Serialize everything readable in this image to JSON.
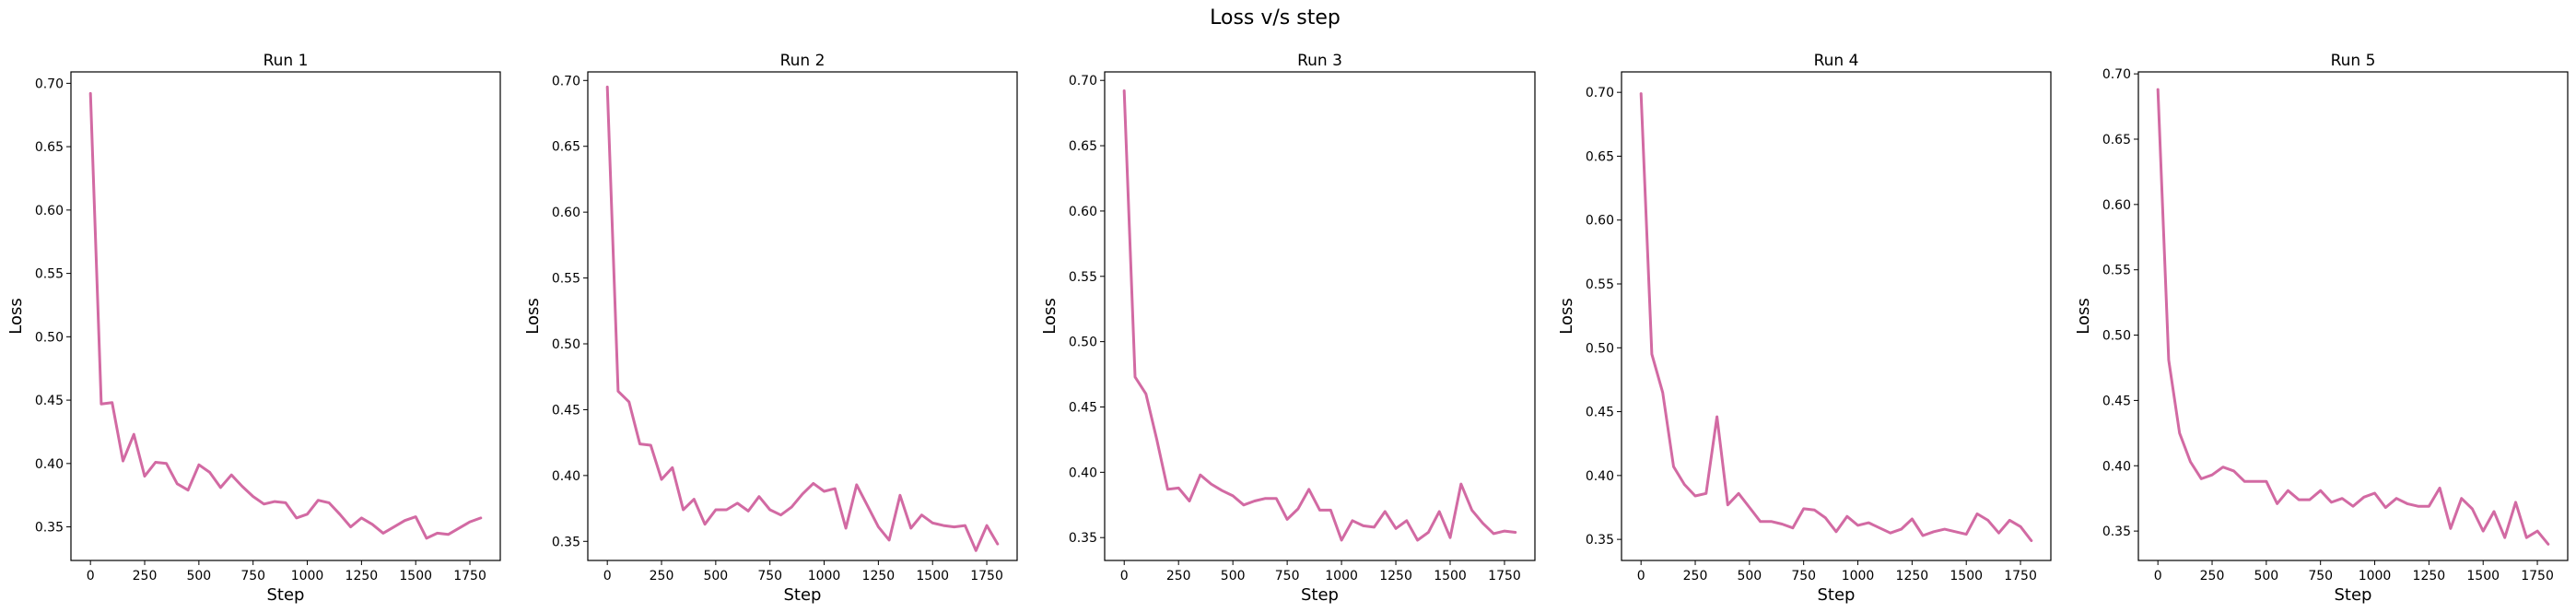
{
  "figure": {
    "title": "Loss v/s step"
  },
  "colors": {
    "line": "#d26aa3",
    "axes": "#000000",
    "background": "#ffffff"
  },
  "chart_data": [
    {
      "type": "line",
      "title": "Run 1",
      "xlabel": "Step",
      "ylabel": "Loss",
      "xlim": [
        -90,
        1890
      ],
      "ylim": [
        0.3235,
        0.709
      ],
      "xticks": [
        0,
        250,
        500,
        750,
        1000,
        1250,
        1500,
        1750
      ],
      "yticks": [
        0.35,
        0.4,
        0.45,
        0.5,
        0.55,
        0.6,
        0.65,
        0.7
      ],
      "grid": false,
      "x": [
        0,
        50,
        100,
        150,
        200,
        250,
        300,
        350,
        400,
        450,
        500,
        550,
        600,
        650,
        700,
        750,
        800,
        850,
        900,
        950,
        1000,
        1050,
        1100,
        1150,
        1200,
        1250,
        1300,
        1350,
        1400,
        1450,
        1500,
        1550,
        1600,
        1650,
        1700,
        1750,
        1800
      ],
      "series": [
        {
          "values": [
            0.692,
            0.447,
            0.448,
            0.402,
            0.423,
            0.39,
            0.401,
            0.4,
            0.384,
            0.379,
            0.399,
            0.393,
            0.381,
            0.391,
            0.382,
            0.374,
            0.368,
            0.37,
            0.369,
            0.357,
            0.36,
            0.371,
            0.369,
            0.36,
            0.35,
            0.357,
            0.352,
            0.345,
            0.35,
            0.355,
            0.358,
            0.341,
            0.345,
            0.344,
            0.349,
            0.354,
            0.357
          ]
        }
      ]
    },
    {
      "type": "line",
      "title": "Run 2",
      "xlabel": "Step",
      "ylabel": "Loss",
      "xlim": [
        -90,
        1890
      ],
      "ylim": [
        0.3355,
        0.7065
      ],
      "xticks": [
        0,
        250,
        500,
        750,
        1000,
        1250,
        1500,
        1750
      ],
      "yticks": [
        0.35,
        0.4,
        0.45,
        0.5,
        0.55,
        0.6,
        0.65,
        0.7
      ],
      "grid": false,
      "x": [
        0,
        50,
        100,
        150,
        200,
        250,
        300,
        350,
        400,
        450,
        500,
        550,
        600,
        650,
        700,
        750,
        800,
        850,
        900,
        950,
        1000,
        1050,
        1100,
        1150,
        1200,
        1250,
        1300,
        1350,
        1400,
        1450,
        1500,
        1550,
        1600,
        1650,
        1700,
        1750,
        1800
      ],
      "series": [
        {
          "values": [
            0.695,
            0.464,
            0.456,
            0.424,
            0.423,
            0.397,
            0.406,
            0.374,
            0.382,
            0.363,
            0.374,
            0.374,
            0.379,
            0.373,
            0.384,
            0.374,
            0.37,
            0.376,
            0.386,
            0.394,
            0.388,
            0.39,
            0.36,
            0.393,
            0.377,
            0.361,
            0.351,
            0.385,
            0.36,
            0.37,
            0.364,
            0.362,
            0.361,
            0.362,
            0.343,
            0.362,
            0.348
          ]
        }
      ]
    },
    {
      "type": "line",
      "title": "Run 3",
      "xlabel": "Step",
      "ylabel": "Loss",
      "xlim": [
        -90,
        1890
      ],
      "ylim": [
        0.3325,
        0.7065
      ],
      "xticks": [
        0,
        250,
        500,
        750,
        1000,
        1250,
        1500,
        1750
      ],
      "yticks": [
        0.35,
        0.4,
        0.45,
        0.5,
        0.55,
        0.6,
        0.65,
        0.7
      ],
      "grid": false,
      "x": [
        0,
        50,
        100,
        150,
        200,
        250,
        300,
        350,
        400,
        450,
        500,
        550,
        600,
        650,
        700,
        750,
        800,
        850,
        900,
        950,
        1000,
        1050,
        1100,
        1150,
        1200,
        1250,
        1300,
        1350,
        1400,
        1450,
        1500,
        1550,
        1600,
        1650,
        1700,
        1750,
        1800
      ],
      "series": [
        {
          "values": [
            0.692,
            0.473,
            0.46,
            0.425,
            0.387,
            0.388,
            0.378,
            0.398,
            0.391,
            0.386,
            0.382,
            0.375,
            0.378,
            0.38,
            0.38,
            0.364,
            0.372,
            0.387,
            0.371,
            0.371,
            0.348,
            0.363,
            0.359,
            0.358,
            0.37,
            0.357,
            0.363,
            0.348,
            0.354,
            0.37,
            0.35,
            0.391,
            0.371,
            0.361,
            0.353,
            0.355,
            0.354
          ]
        }
      ]
    },
    {
      "type": "line",
      "title": "Run 4",
      "xlabel": "Step",
      "ylabel": "Loss",
      "xlim": [
        -90,
        1890
      ],
      "ylim": [
        0.3335,
        0.716
      ],
      "xticks": [
        0,
        250,
        500,
        750,
        1000,
        1250,
        1500,
        1750
      ],
      "yticks": [
        0.35,
        0.4,
        0.45,
        0.5,
        0.55,
        0.6,
        0.65,
        0.7
      ],
      "grid": false,
      "x": [
        0,
        50,
        100,
        150,
        200,
        250,
        300,
        350,
        400,
        450,
        500,
        550,
        600,
        650,
        700,
        750,
        800,
        850,
        900,
        950,
        1000,
        1050,
        1100,
        1150,
        1200,
        1250,
        1300,
        1350,
        1400,
        1450,
        1500,
        1550,
        1600,
        1650,
        1700,
        1750,
        1800
      ],
      "series": [
        {
          "values": [
            0.699,
            0.495,
            0.465,
            0.407,
            0.393,
            0.384,
            0.386,
            0.446,
            0.377,
            0.386,
            0.375,
            0.364,
            0.364,
            0.362,
            0.359,
            0.374,
            0.373,
            0.367,
            0.356,
            0.368,
            0.361,
            0.363,
            0.359,
            0.355,
            0.358,
            0.366,
            0.353,
            0.356,
            0.358,
            0.356,
            0.354,
            0.37,
            0.365,
            0.355,
            0.365,
            0.36,
            0.349
          ]
        }
      ]
    },
    {
      "type": "line",
      "title": "Run 5",
      "xlabel": "Step",
      "ylabel": "Loss",
      "xlim": [
        -90,
        1890
      ],
      "ylim": [
        0.3275,
        0.7015
      ],
      "xticks": [
        0,
        250,
        500,
        750,
        1000,
        1250,
        1500,
        1750
      ],
      "yticks": [
        0.35,
        0.4,
        0.45,
        0.5,
        0.55,
        0.6,
        0.65,
        0.7
      ],
      "grid": false,
      "x": [
        0,
        50,
        100,
        150,
        200,
        250,
        300,
        350,
        400,
        450,
        500,
        550,
        600,
        650,
        700,
        750,
        800,
        850,
        900,
        950,
        1000,
        1050,
        1100,
        1150,
        1200,
        1250,
        1300,
        1350,
        1400,
        1450,
        1500,
        1550,
        1600,
        1650,
        1700,
        1750,
        1800
      ],
      "series": [
        {
          "values": [
            0.688,
            0.481,
            0.425,
            0.403,
            0.39,
            0.393,
            0.399,
            0.396,
            0.388,
            0.388,
            0.388,
            0.371,
            0.381,
            0.374,
            0.374,
            0.381,
            0.372,
            0.375,
            0.369,
            0.376,
            0.379,
            0.368,
            0.375,
            0.371,
            0.369,
            0.369,
            0.383,
            0.352,
            0.375,
            0.367,
            0.35,
            0.365,
            0.345,
            0.372,
            0.345,
            0.35,
            0.34
          ]
        }
      ]
    }
  ]
}
